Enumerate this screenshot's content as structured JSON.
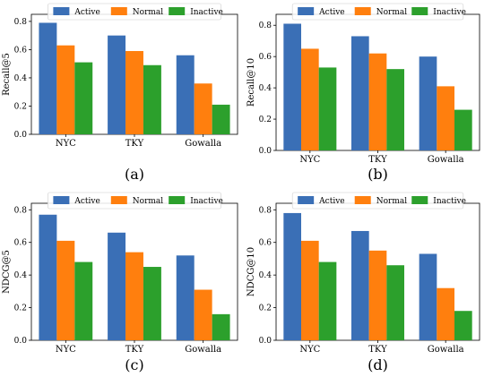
{
  "series_colors": [
    "#3a6fb6",
    "#ff7f0e",
    "#2ca02c"
  ],
  "chart_data": [
    {
      "type": "bar",
      "panel": "(a)",
      "categories": [
        "NYC",
        "TKY",
        "Gowalla"
      ],
      "series": [
        {
          "name": "Active",
          "values": [
            0.79,
            0.7,
            0.56
          ]
        },
        {
          "name": "Normal",
          "values": [
            0.63,
            0.59,
            0.36
          ]
        },
        {
          "name": "Inactive",
          "values": [
            0.51,
            0.49,
            0.21
          ]
        }
      ],
      "ylabel": "Recall@5",
      "ylim": [
        0,
        0.85
      ],
      "yticks": [
        "0.0",
        "0.2",
        "0.4",
        "0.6",
        "0.8"
      ],
      "legend": "top"
    },
    {
      "type": "bar",
      "panel": "(b)",
      "categories": [
        "NYC",
        "TKY",
        "Gowalla"
      ],
      "series": [
        {
          "name": "Active",
          "values": [
            0.81,
            0.73,
            0.6
          ]
        },
        {
          "name": "Normal",
          "values": [
            0.65,
            0.62,
            0.41
          ]
        },
        {
          "name": "Inactive",
          "values": [
            0.53,
            0.52,
            0.26
          ]
        }
      ],
      "ylabel": "Recall@10",
      "ylim": [
        0,
        0.87
      ],
      "yticks": [
        "0.0",
        "0.2",
        "0.4",
        "0.6",
        "0.8"
      ],
      "legend": "top"
    },
    {
      "type": "bar",
      "panel": "(c)",
      "categories": [
        "NYC",
        "TKY",
        "Gowalla"
      ],
      "series": [
        {
          "name": "Active",
          "values": [
            0.77,
            0.66,
            0.52
          ]
        },
        {
          "name": "Normal",
          "values": [
            0.61,
            0.54,
            0.31
          ]
        },
        {
          "name": "Inactive",
          "values": [
            0.48,
            0.45,
            0.16
          ]
        }
      ],
      "ylabel": "NDCG@5",
      "ylim": [
        0,
        0.84
      ],
      "yticks": [
        "0.0",
        "0.2",
        "0.4",
        "0.6",
        "0.8"
      ],
      "legend": "top"
    },
    {
      "type": "bar",
      "panel": "(d)",
      "categories": [
        "NYC",
        "TKY",
        "Gowalla"
      ],
      "series": [
        {
          "name": "Active",
          "values": [
            0.78,
            0.67,
            0.53
          ]
        },
        {
          "name": "Normal",
          "values": [
            0.61,
            0.55,
            0.32
          ]
        },
        {
          "name": "Inactive",
          "values": [
            0.48,
            0.46,
            0.18
          ]
        }
      ],
      "ylabel": "NDCG@10",
      "ylim": [
        0,
        0.84
      ],
      "yticks": [
        "0.0",
        "0.2",
        "0.4",
        "0.6",
        "0.8"
      ],
      "legend": "top"
    }
  ]
}
